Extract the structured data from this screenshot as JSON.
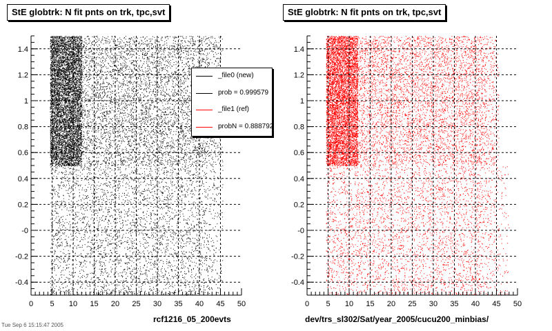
{
  "footer": "Tue Sep 6 15:15:47 2005",
  "chart_data": [
    {
      "type": "scatter",
      "title": "StE globtrk: N fit pnts on trk, tpc,svt",
      "xlabel": "rcf1216_05_200evts",
      "ylabel": "",
      "xlim": [
        0,
        50
      ],
      "ylim": [
        -0.5,
        1.5
      ],
      "xticks": [
        "0",
        "5",
        "10",
        "15",
        "20",
        "25",
        "30",
        "35",
        "40",
        "45",
        "50"
      ],
      "yticks": [
        "-0.4",
        "-0.2",
        "-0",
        "0.2",
        "0.4",
        "0.6",
        "0.8",
        "1",
        "1.2",
        "1.4"
      ],
      "grid": true,
      "point_color": "#000000",
      "legend_placement": "top-right",
      "legend": [
        {
          "label": "_file0 (new)",
          "color": "#000000"
        },
        {
          "label": "prob = 0.999579",
          "color": "#000000"
        },
        {
          "label": "_file1 (ref)",
          "color": "#ff0000"
        },
        {
          "label": "probN = 0.888792",
          "color": "#ff0000"
        }
      ],
      "distribution": {
        "x_range": [
          4.5,
          45.5
        ],
        "dense_region": {
          "x": [
            4.5,
            12
          ],
          "y": [
            0.5,
            1.5
          ]
        },
        "medium_region": {
          "x": [
            12,
            45.5
          ],
          "y": [
            0.5,
            1.5
          ]
        },
        "sparse_region": {
          "x": [
            4.5,
            45.5
          ],
          "y": [
            -0.5,
            0.5
          ]
        }
      }
    },
    {
      "type": "scatter",
      "title": "StE globtrk: N fit pnts on trk, tpc,svt",
      "xlabel": "dev/trs_sl302/Sat/year_2005/cucu200_minbias/",
      "ylabel": "",
      "xlim": [
        0,
        50
      ],
      "ylim": [
        -0.5,
        1.5
      ],
      "xticks": [
        "0",
        "5",
        "10",
        "15",
        "20",
        "25",
        "30",
        "35",
        "40",
        "45",
        "50"
      ],
      "yticks": [
        "-0.4",
        "-0.2",
        "-0",
        "0.2",
        "0.4",
        "0.6",
        "0.8",
        "1",
        "1.2",
        "1.4"
      ],
      "grid": true,
      "point_color": "#ff0000",
      "distribution": {
        "x_range": [
          4.5,
          45.5
        ],
        "dense_region": {
          "x": [
            4.5,
            12
          ],
          "y": [
            0.5,
            1.5
          ]
        },
        "medium_region": {
          "x": [
            12,
            45.5
          ],
          "y": [
            0.5,
            1.5
          ]
        },
        "sparse_region": {
          "x": [
            4.5,
            48
          ],
          "y": [
            -0.5,
            0.5
          ]
        }
      }
    }
  ]
}
